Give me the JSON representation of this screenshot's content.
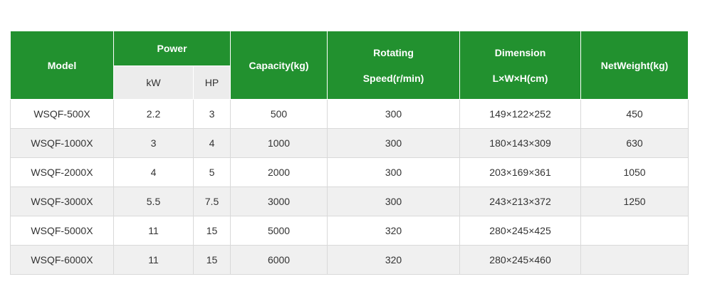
{
  "table": {
    "headers": {
      "model": "Model",
      "power": "Power",
      "kw": "kW",
      "hp": "HP",
      "capacity": "Capacity(kg)",
      "rotating_line1": "Rotating",
      "rotating_line2": "Speed(r/min)",
      "dimension_line1": "Dimension",
      "dimension_line2": "L×W×H(cm)",
      "net_weight": "NetWeight(kg)"
    },
    "rows": [
      {
        "model": "WSQF-500X",
        "kw": "2.2",
        "hp": "3",
        "capacity": "500",
        "speed": "300",
        "dimension": "149×122×252",
        "weight": "450"
      },
      {
        "model": "WSQF-1000X",
        "kw": "3",
        "hp": "4",
        "capacity": "1000",
        "speed": "300",
        "dimension": "180×143×309",
        "weight": "630"
      },
      {
        "model": "WSQF-2000X",
        "kw": "4",
        "hp": "5",
        "capacity": "2000",
        "speed": "300",
        "dimension": "203×169×361",
        "weight": "1050"
      },
      {
        "model": "WSQF-3000X",
        "kw": "5.5",
        "hp": "7.5",
        "capacity": "3000",
        "speed": "300",
        "dimension": "243×213×372",
        "weight": "1250"
      },
      {
        "model": "WSQF-5000X",
        "kw": "11",
        "hp": "15",
        "capacity": "5000",
        "speed": "320",
        "dimension": "280×245×425",
        "weight": ""
      },
      {
        "model": "WSQF-6000X",
        "kw": "11",
        "hp": "15",
        "capacity": "6000",
        "speed": "320",
        "dimension": "280×245×460",
        "weight": ""
      }
    ]
  },
  "colors": {
    "header_green": "#22912f",
    "subheader_gray": "#ececec",
    "row_alt_gray": "#f0f0f0"
  }
}
